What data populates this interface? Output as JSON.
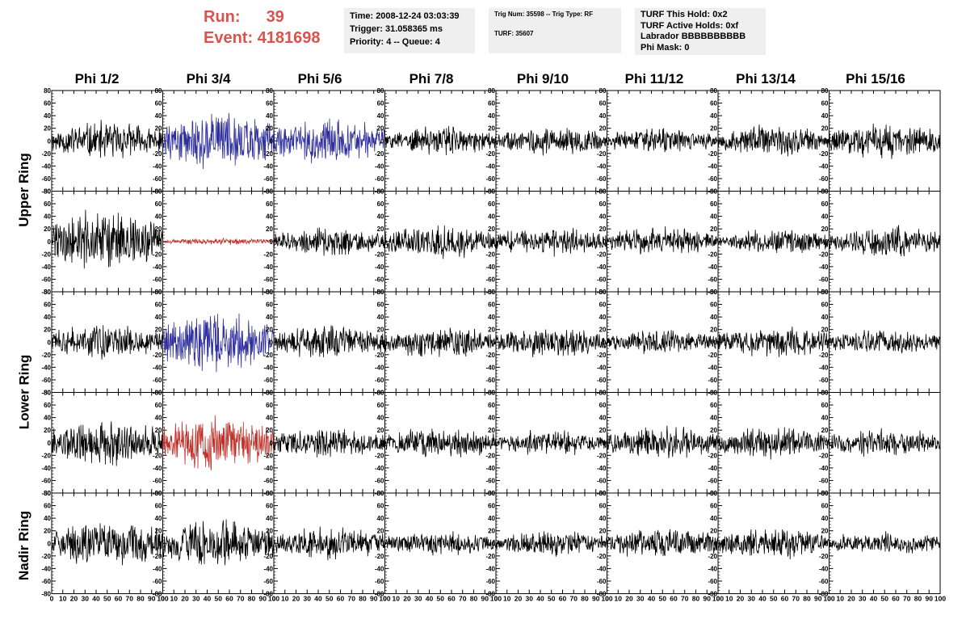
{
  "run_label": "Run:",
  "run_value": "39",
  "event_label": "Event:",
  "event_value": "4181698",
  "time_box": {
    "time": "Time: 2008-12-24 03:03:39",
    "trigger": "Trigger: 31.058365 ms",
    "priority": "Priority: 4 -- Queue: 4"
  },
  "trig_box": {
    "trig": "Trig Num: 35598 -- Trig Type: RF",
    "turf": "TURF: 35607"
  },
  "turf_box": {
    "hold": "TURF This Hold: 0x2",
    "active": "TURF Active Holds: 0xf",
    "labrador": "Labrador BBBBBBBBBB",
    "phimask": "Phi Mask: 0"
  },
  "columns": [
    "Phi 1/2",
    "Phi 3/4",
    "Phi 5/6",
    "Phi 7/8",
    "Phi 9/10",
    "Phi 11/12",
    "Phi 13/14",
    "Phi 15/16"
  ],
  "rows": [
    "Upper Ring",
    "Lower Ring",
    "Nadir Ring"
  ],
  "colors": {
    "default": "#000000",
    "vpol": "#2e2e9e",
    "hpol": "#c0302a",
    "run": "#d9534f"
  },
  "chart_data": {
    "type": "line",
    "xlim": [
      0,
      100
    ],
    "ylim": [
      -80,
      80
    ],
    "y_ticks": [
      -80,
      -60,
      -40,
      -20,
      0,
      20,
      40,
      60,
      80
    ],
    "x_ticks": [
      0,
      10,
      20,
      30,
      40,
      50,
      60,
      70,
      80,
      90,
      100
    ],
    "note_values": "waveform amplitude estimates (approximate envelope of noise)",
    "panels": [
      {
        "row": 0,
        "col": 0,
        "color": "default",
        "amp": 25
      },
      {
        "row": 0,
        "col": 1,
        "color": "vpol",
        "amp": 35
      },
      {
        "row": 0,
        "col": 2,
        "color": "vpol",
        "amp": 28
      },
      {
        "row": 0,
        "col": 3,
        "color": "default",
        "amp": 18
      },
      {
        "row": 0,
        "col": 4,
        "color": "default",
        "amp": 18
      },
      {
        "row": 0,
        "col": 5,
        "color": "default",
        "amp": 16
      },
      {
        "row": 0,
        "col": 6,
        "color": "default",
        "amp": 20
      },
      {
        "row": 0,
        "col": 7,
        "color": "default",
        "amp": 22
      },
      {
        "row": 1,
        "col": 0,
        "color": "default",
        "amp": 40
      },
      {
        "row": 1,
        "col": 1,
        "color": "hpol",
        "amp": 4
      },
      {
        "row": 1,
        "col": 2,
        "color": "default",
        "amp": 18
      },
      {
        "row": 1,
        "col": 3,
        "color": "default",
        "amp": 22
      },
      {
        "row": 1,
        "col": 4,
        "color": "default",
        "amp": 18
      },
      {
        "row": 1,
        "col": 5,
        "color": "default",
        "amp": 18
      },
      {
        "row": 1,
        "col": 6,
        "color": "default",
        "amp": 16
      },
      {
        "row": 1,
        "col": 7,
        "color": "default",
        "amp": 20
      },
      {
        "row": 2,
        "col": 0,
        "color": "default",
        "amp": 22
      },
      {
        "row": 2,
        "col": 1,
        "color": "vpol",
        "amp": 38
      },
      {
        "row": 2,
        "col": 2,
        "color": "default",
        "amp": 22
      },
      {
        "row": 2,
        "col": 3,
        "color": "default",
        "amp": 20
      },
      {
        "row": 2,
        "col": 4,
        "color": "default",
        "amp": 20
      },
      {
        "row": 2,
        "col": 5,
        "color": "default",
        "amp": 15
      },
      {
        "row": 2,
        "col": 6,
        "color": "default",
        "amp": 20
      },
      {
        "row": 2,
        "col": 7,
        "color": "default",
        "amp": 16
      },
      {
        "row": 3,
        "col": 0,
        "color": "default",
        "amp": 30
      },
      {
        "row": 3,
        "col": 1,
        "color": "hpol",
        "amp": 35
      },
      {
        "row": 3,
        "col": 2,
        "color": "default",
        "amp": 18
      },
      {
        "row": 3,
        "col": 3,
        "color": "default",
        "amp": 20
      },
      {
        "row": 3,
        "col": 4,
        "color": "default",
        "amp": 16
      },
      {
        "row": 3,
        "col": 5,
        "color": "default",
        "amp": 20
      },
      {
        "row": 3,
        "col": 6,
        "color": "default",
        "amp": 20
      },
      {
        "row": 3,
        "col": 7,
        "color": "default",
        "amp": 18
      },
      {
        "row": 4,
        "col": 0,
        "color": "default",
        "amp": 30
      },
      {
        "row": 4,
        "col": 1,
        "color": "default",
        "amp": 32
      },
      {
        "row": 4,
        "col": 2,
        "color": "default",
        "amp": 20
      },
      {
        "row": 4,
        "col": 3,
        "color": "default",
        "amp": 15
      },
      {
        "row": 4,
        "col": 4,
        "color": "default",
        "amp": 16
      },
      {
        "row": 4,
        "col": 5,
        "color": "default",
        "amp": 20
      },
      {
        "row": 4,
        "col": 6,
        "color": "default",
        "amp": 20
      },
      {
        "row": 4,
        "col": 7,
        "color": "default",
        "amp": 15
      }
    ]
  }
}
